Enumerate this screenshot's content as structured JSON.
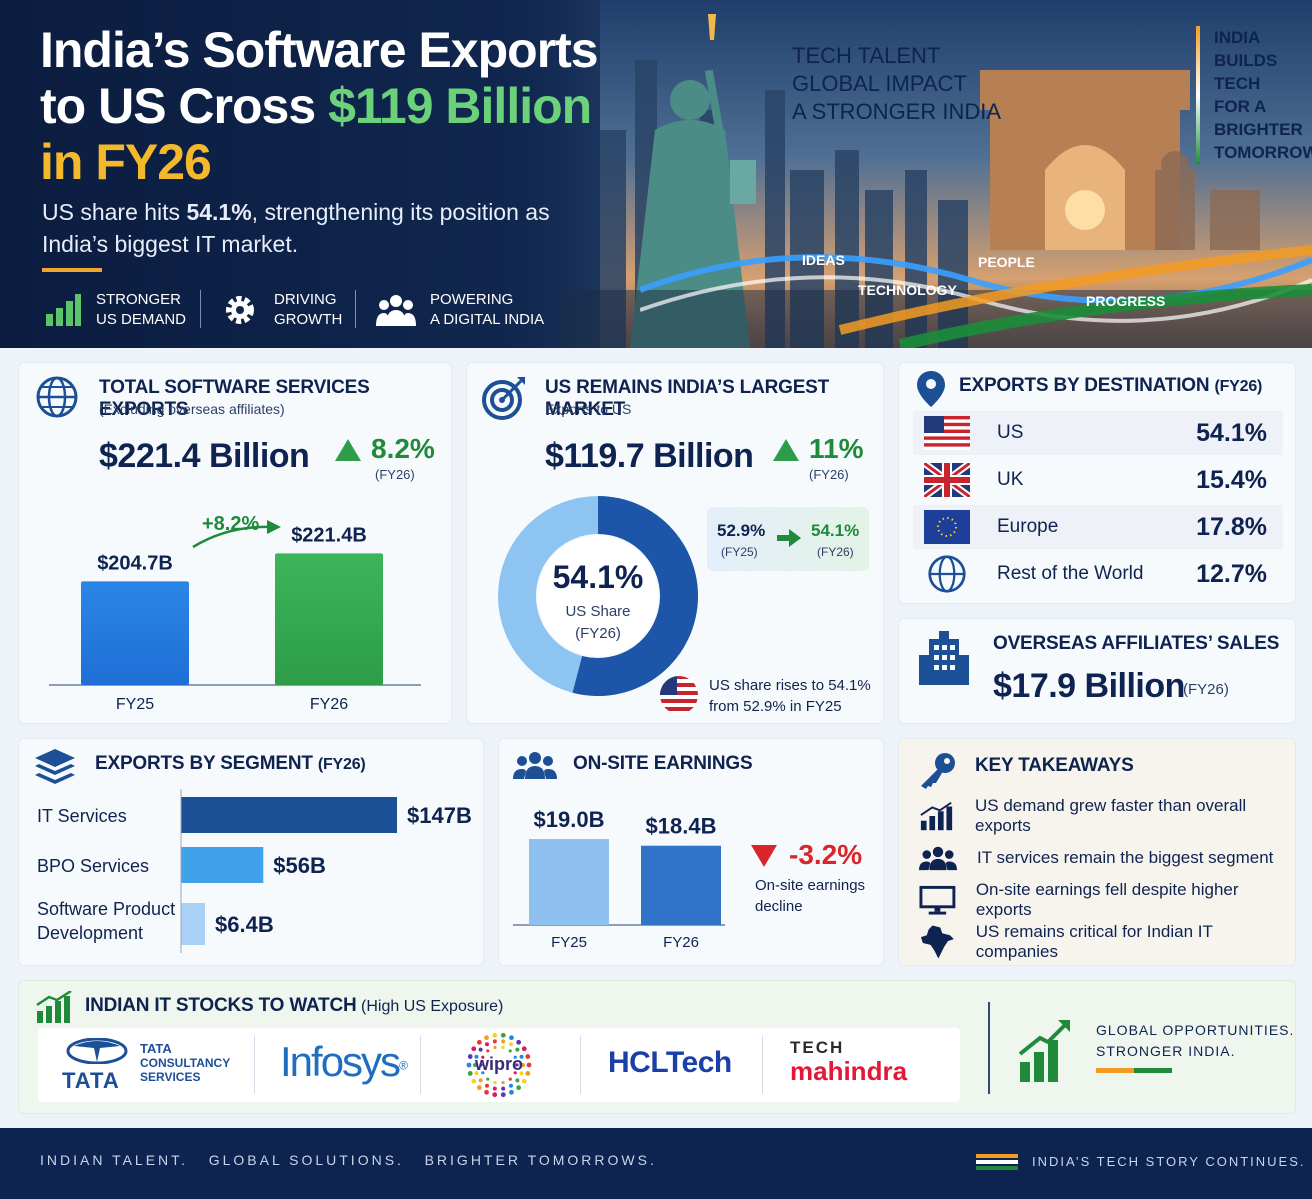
{
  "hero": {
    "title_line1": "India’s Software Exports",
    "title_line2_prefix": "to US Cross ",
    "title_line2_highlight": "$119 Billion",
    "title_line3": "in FY26",
    "subtitle_prefix": "US share hits ",
    "subtitle_bold": "54.1%",
    "subtitle_suffix": ", strengthening its position as India’s biggest IT market.",
    "features": [
      {
        "line1": "STRONGER",
        "line2": "US DEMAND",
        "icon": "bar-chart-icon"
      },
      {
        "line1": "DRIVING",
        "line2": "GROWTH",
        "icon": "gear-icon"
      },
      {
        "line1": "POWERING",
        "line2": "A DIGITAL INDIA",
        "icon": "people-icon"
      }
    ],
    "tagline": [
      "TECH TALENT",
      "GLOBAL IMPACT",
      "A STRONGER INDIA"
    ],
    "build_text": [
      "INDIA",
      "BUILDS",
      "TECH",
      "FOR A",
      "BRIGHTER",
      "TOMORROW"
    ],
    "wave_labels": [
      "IDEAS",
      "TECHNOLOGY",
      "PEOPLE",
      "PROGRESS"
    ]
  },
  "total_exports": {
    "title": "TOTAL SOFTWARE SERVICES EXPORTS",
    "subtitle": "(Excluding overseas affiliates)",
    "value": "$221.4 Billion",
    "growth": "8.2%",
    "growth_period": "(FY26)",
    "change_label": "+8.2%",
    "chart_data": {
      "type": "bar",
      "categories": [
        "FY25",
        "FY26"
      ],
      "values": [
        204.7,
        221.4
      ],
      "value_labels": [
        "$204.7B",
        "$221.4B"
      ],
      "colors": [
        "#1f6fd6",
        "#2e9c48"
      ]
    }
  },
  "us_market": {
    "title": "US REMAINS INDIA’S LARGEST MARKET",
    "subtitle": "Exports to US",
    "value": "$119.7 Billion",
    "growth": "11%",
    "growth_period": "(FY26)",
    "donut_value": "54.1%",
    "donut_label": "US Share",
    "donut_period": "(FY26)",
    "share_fraction": 0.541,
    "compare_from": "52.9%",
    "compare_from_period": "(FY25)",
    "compare_to": "54.1%",
    "compare_to_period": "(FY26)",
    "note_line1": "US share rises to 54.1%",
    "note_line2": "from 52.9% in FY25"
  },
  "destination": {
    "title": "EXPORTS BY DESTINATION",
    "title_suffix": "(FY26)",
    "rows": [
      {
        "name": "US",
        "value": "54.1%",
        "icon": "us-flag-icon"
      },
      {
        "name": "UK",
        "value": "15.4%",
        "icon": "uk-flag-icon"
      },
      {
        "name": "Europe",
        "value": "17.8%",
        "icon": "eu-flag-icon"
      },
      {
        "name": "Rest of the World",
        "value": "12.7%",
        "icon": "globe-icon"
      }
    ]
  },
  "affiliates": {
    "title": "OVERSEAS AFFILIATES’ SALES",
    "value": "$17.9 Billion",
    "period": "(FY26)"
  },
  "segment": {
    "title": "EXPORTS BY SEGMENT",
    "title_suffix": "(FY26)",
    "chart_data": {
      "type": "bar",
      "categories": [
        "IT Services",
        "BPO Services",
        "Software Product Development"
      ],
      "values": [
        147,
        56,
        6.4
      ],
      "value_labels": [
        "$147B",
        "$56B",
        "$6.4B"
      ],
      "colors": [
        "#1d4f96",
        "#3fa2ea",
        "#a9d1f6"
      ]
    }
  },
  "onsite": {
    "title": "ON-SITE EARNINGS",
    "change": "-3.2%",
    "note_line1": "On-site earnings",
    "note_line2": "decline",
    "chart_data": {
      "type": "bar",
      "categories": [
        "FY25",
        "FY26"
      ],
      "values": [
        19.0,
        18.4
      ],
      "value_labels": [
        "$19.0B",
        "$18.4B"
      ],
      "colors": [
        "#8ec1ef",
        "#2f74c8"
      ]
    }
  },
  "takeaways": {
    "title": "KEY TAKEAWAYS",
    "items": [
      {
        "text": "US demand grew faster than overall exports",
        "icon": "growth-chart-icon"
      },
      {
        "text": "IT services remain the biggest segment",
        "icon": "people-icon"
      },
      {
        "text": "On-site earnings fell despite higher exports",
        "icon": "monitor-icon"
      },
      {
        "text": "US remains critical for Indian IT companies",
        "icon": "india-map-icon"
      }
    ]
  },
  "stocks": {
    "title": "INDIAN IT STOCKS TO WATCH",
    "title_suffix": "(High US Exposure)",
    "logos": {
      "tata_word": "TATA",
      "tcs_line1": "TATA",
      "tcs_line2": "CONSULTANCY",
      "tcs_line3": "SERVICES",
      "infosys": "Infosys",
      "infosys_mark": "®",
      "wipro": "wipro",
      "hcl": "HCLTech",
      "tech": "TECH",
      "mahindra": "mahindra"
    },
    "slogan_line1": "GLOBAL OPPORTUNITIES.",
    "slogan_line2": "STRONGER INDIA."
  },
  "footer": {
    "left": "INDIAN TALENT.   GLOBAL SOLUTIONS.   BRIGHTER TOMORROWS.",
    "right": "INDIA’S TECH STORY CONTINUES."
  },
  "colors": {
    "navy": "#0f2350",
    "green": "#1f8a3a",
    "red": "#d8262c",
    "saffron": "#f39b22"
  }
}
